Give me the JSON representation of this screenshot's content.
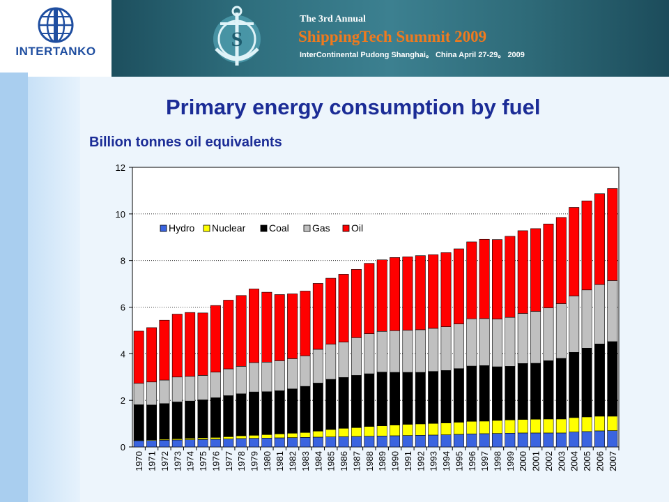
{
  "header": {
    "logo_text": "INTERTANKO",
    "banner_line1": "The 3rd Annual",
    "banner_line2": "ShippingTech Summit 2009",
    "banner_line3": "InterContinental Pudong Shanghai。 China April 27-29。 2009"
  },
  "slide": {
    "title": "Primary energy consumption by fuel",
    "subtitle": "Billion tonnes oil equivalents"
  },
  "colors": {
    "hydro": "#3a64e0",
    "nuclear": "#ffff00",
    "coal": "#000000",
    "gas": "#c0c0c0",
    "oil": "#ff0000"
  },
  "chart_data": {
    "type": "bar",
    "stacked": true,
    "title": "",
    "xlabel": "",
    "ylabel": "",
    "ylim": [
      0,
      12
    ],
    "yticks": [
      0,
      2,
      4,
      6,
      8,
      10,
      12
    ],
    "legend_position": "top-left",
    "categories": [
      "1970",
      "1971",
      "1972",
      "1973",
      "1974",
      "1975",
      "1976",
      "1977",
      "1978",
      "1979",
      "1980",
      "1981",
      "1982",
      "1983",
      "1984",
      "1985",
      "1986",
      "1987",
      "1988",
      "1989",
      "1990",
      "1991",
      "1992",
      "1993",
      "1994",
      "1995",
      "1996",
      "1997",
      "1998",
      "1999",
      "2000",
      "2001",
      "2002",
      "2003",
      "2004",
      "2005",
      "2006",
      "2007"
    ],
    "series": [
      {
        "name": "Hydro",
        "color": "#3a64e0",
        "values": [
          0.27,
          0.28,
          0.29,
          0.3,
          0.31,
          0.32,
          0.33,
          0.34,
          0.36,
          0.37,
          0.38,
          0.39,
          0.4,
          0.41,
          0.42,
          0.43,
          0.44,
          0.45,
          0.46,
          0.47,
          0.48,
          0.49,
          0.5,
          0.51,
          0.52,
          0.54,
          0.56,
          0.57,
          0.58,
          0.59,
          0.6,
          0.6,
          0.6,
          0.6,
          0.64,
          0.66,
          0.69,
          0.7
        ]
      },
      {
        "name": "Nuclear",
        "color": "#ffff00",
        "values": [
          0.02,
          0.03,
          0.04,
          0.05,
          0.06,
          0.07,
          0.08,
          0.1,
          0.12,
          0.13,
          0.15,
          0.17,
          0.19,
          0.21,
          0.26,
          0.32,
          0.36,
          0.38,
          0.42,
          0.44,
          0.46,
          0.48,
          0.49,
          0.5,
          0.51,
          0.52,
          0.54,
          0.54,
          0.56,
          0.57,
          0.58,
          0.59,
          0.6,
          0.6,
          0.62,
          0.63,
          0.63,
          0.62
        ]
      },
      {
        "name": "Coal",
        "color": "#000000",
        "values": [
          1.52,
          1.49,
          1.53,
          1.58,
          1.6,
          1.63,
          1.7,
          1.76,
          1.8,
          1.86,
          1.84,
          1.85,
          1.9,
          1.98,
          2.06,
          2.15,
          2.18,
          2.24,
          2.26,
          2.3,
          2.26,
          2.23,
          2.21,
          2.23,
          2.25,
          2.3,
          2.37,
          2.38,
          2.3,
          2.3,
          2.4,
          2.4,
          2.5,
          2.6,
          2.8,
          2.95,
          3.1,
          3.2
        ]
      },
      {
        "name": "Gas",
        "color": "#c0c0c0",
        "values": [
          0.92,
          0.99,
          1.01,
          1.07,
          1.06,
          1.05,
          1.1,
          1.15,
          1.18,
          1.26,
          1.27,
          1.29,
          1.3,
          1.31,
          1.45,
          1.51,
          1.52,
          1.62,
          1.72,
          1.75,
          1.79,
          1.81,
          1.83,
          1.85,
          1.88,
          1.92,
          2.03,
          2.02,
          2.05,
          2.1,
          2.15,
          2.23,
          2.27,
          2.35,
          2.42,
          2.5,
          2.55,
          2.62
        ]
      },
      {
        "name": "Oil",
        "color": "#ff0000",
        "values": [
          2.24,
          2.33,
          2.57,
          2.7,
          2.74,
          2.68,
          2.86,
          2.95,
          3.04,
          3.16,
          3.0,
          2.84,
          2.78,
          2.78,
          2.83,
          2.83,
          2.91,
          2.93,
          3.02,
          3.07,
          3.14,
          3.15,
          3.18,
          3.16,
          3.18,
          3.22,
          3.3,
          3.4,
          3.41,
          3.48,
          3.55,
          3.55,
          3.6,
          3.7,
          3.8,
          3.82,
          3.9,
          3.95
        ]
      }
    ]
  }
}
